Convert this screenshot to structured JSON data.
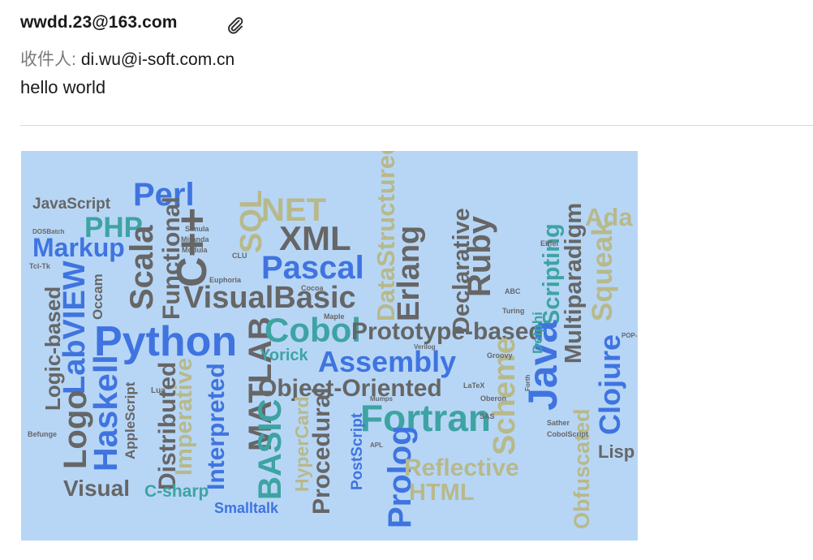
{
  "email": {
    "sender": "wwdd.23@163.com",
    "recipient_label": "收件人:",
    "recipient": "di.wu@i-soft.com.cn",
    "body": "hello world"
  },
  "icons": {
    "attachment": "paperclip-icon"
  },
  "colors": {
    "image_bg": "#b7d6f6",
    "word_gray": "#666666",
    "word_blue": "#3f74e0",
    "word_teal": "#3ea3a3",
    "word_khaki": "#b8b98a"
  },
  "attachment_image": {
    "words": [
      "JavaScript",
      "Perl",
      "PHP",
      "NET",
      "SQL",
      "C++",
      "XML",
      "Pascal",
      "Markup",
      "Scala",
      "Functional",
      "VisualBasic",
      "DataStructured",
      "Erlang",
      "Declarative",
      "Ruby",
      "Scripting",
      "Multiparadigm",
      "Squeak",
      "Ada",
      "Logic-based",
      "LabVIEW",
      "Python",
      "MATLAB",
      "Cobol",
      "Prototype-based",
      "Assembly",
      "Java",
      "Clojure",
      "Haskell",
      "Logo",
      "Object-Oriented",
      "Fortran",
      "Scheme",
      "Visual",
      "Distributed",
      "Imperative",
      "Interpreted",
      "BASIC",
      "HyperCard",
      "Procedural",
      "PostScript",
      "Prolog",
      "Reflective",
      "HTML",
      "Obfuscated",
      "Lisp",
      "C-sharp",
      "Smalltalk",
      "Yorick",
      "Delphi",
      "Occam",
      "AppleScript",
      "Simula",
      "Miranda",
      "CLU",
      "Euphoria",
      "Cocoa",
      "Maple",
      "Groovy",
      "Oberon",
      "Eiffel",
      "Turing",
      "Befunge",
      "Tcl-Tk",
      "DOSBatch",
      "Modula",
      "ABC",
      "APL",
      "SAS",
      "Verilog",
      "Mumps",
      "LaTeX",
      "Sather",
      "CobolScript",
      "POP-11",
      "Lua",
      "Forth"
    ]
  }
}
